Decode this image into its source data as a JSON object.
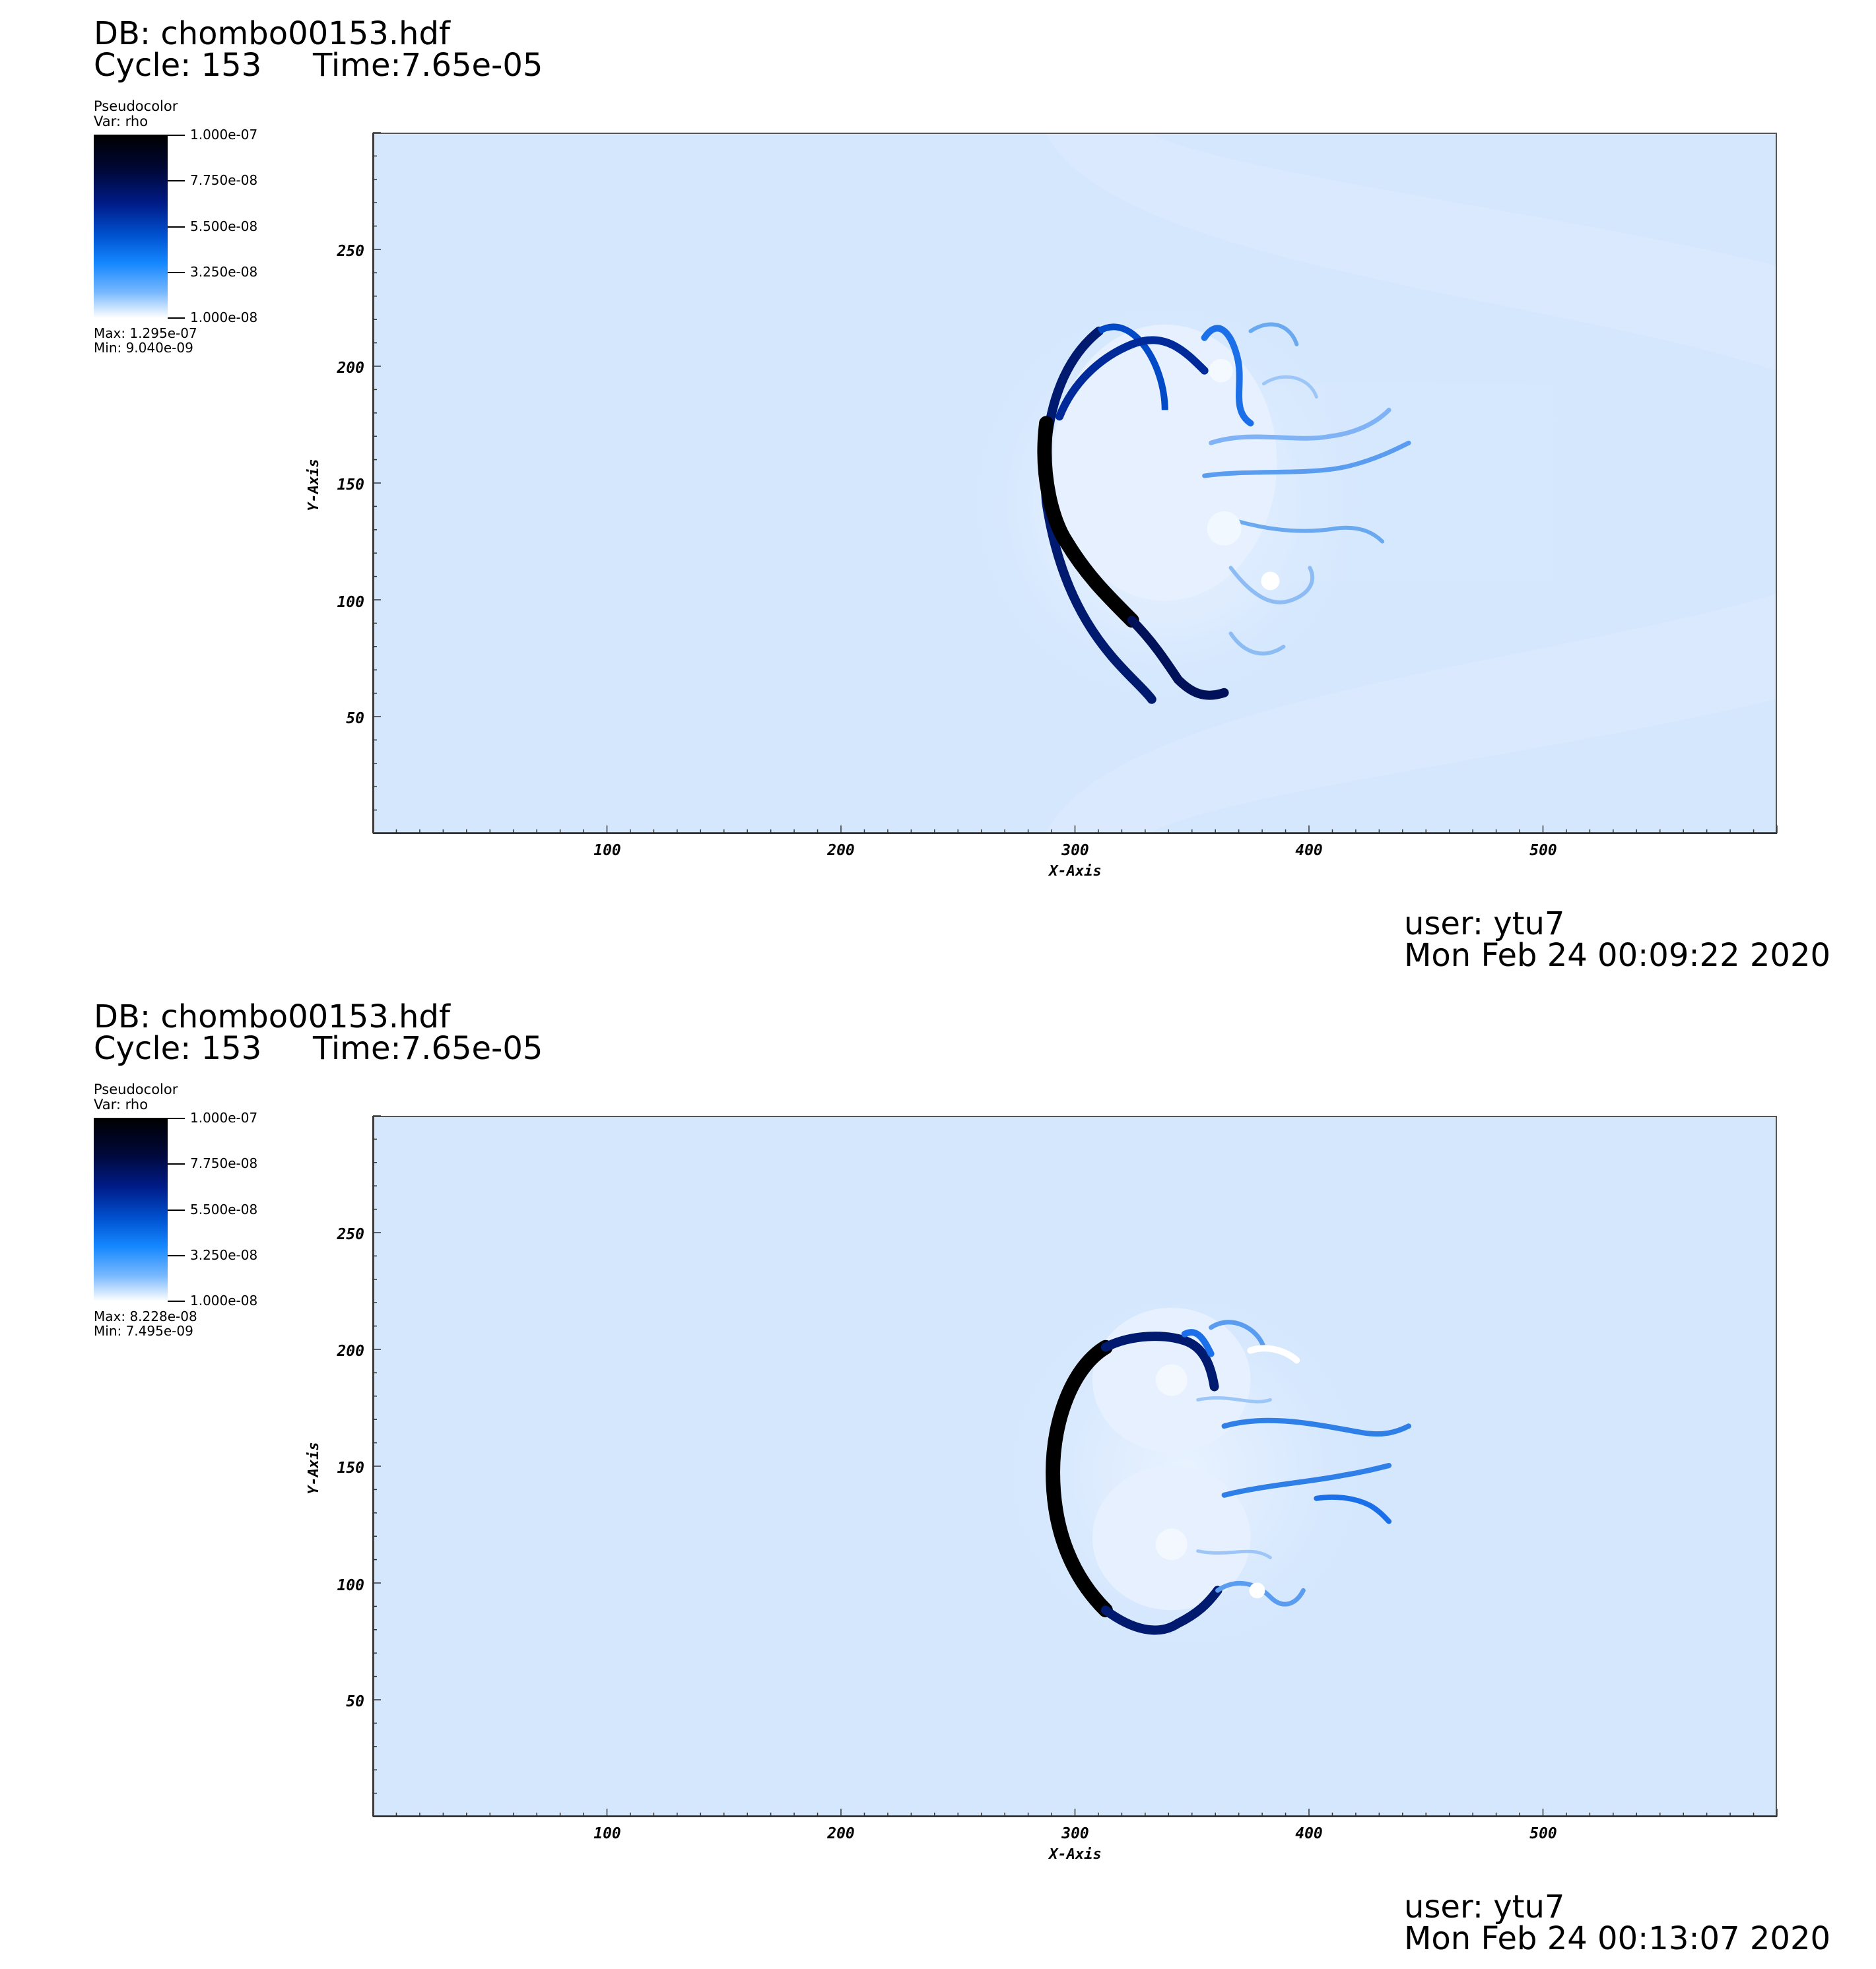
{
  "panels": [
    {
      "db_title": "DB: chombo00153.hdf",
      "cycle": "Cycle: 153",
      "time": "Time:7.65e-05",
      "legend": {
        "plot_type": "Pseudocolor",
        "var": "Var: rho",
        "ticks": [
          "1.000e-07",
          "7.750e-08",
          "5.500e-08",
          "3.250e-08",
          "1.000e-08"
        ],
        "max": "Max:  1.295e-07",
        "min": "Min:  9.040e-09"
      },
      "user": "user: ytu7",
      "date": "Mon Feb 24 00:09:22 2020"
    },
    {
      "db_title": "DB: chombo00153.hdf",
      "cycle": "Cycle: 153",
      "time": "Time:7.65e-05",
      "legend": {
        "plot_type": "Pseudocolor",
        "var": "Var: rho",
        "ticks": [
          "1.000e-07",
          "7.750e-08",
          "5.500e-08",
          "3.250e-08",
          "1.000e-08"
        ],
        "max": "Max:  8.228e-08",
        "min": "Min:  7.495e-09"
      },
      "user": "user: ytu7",
      "date": "Mon Feb 24 00:13:07 2020"
    }
  ],
  "axes": {
    "x_title": "X-Axis",
    "y_title": "Y-Axis",
    "x_ticks": [
      "100",
      "200",
      "300",
      "400",
      "500"
    ],
    "y_ticks": [
      "50",
      "100",
      "150",
      "200",
      "250"
    ]
  },
  "colors": {
    "background_field": "#d4e7fd",
    "colormap": [
      "#000000",
      "#00083a",
      "#001c8a",
      "#0052d0",
      "#1487ff",
      "#77b8ff",
      "#ffffff"
    ]
  }
}
